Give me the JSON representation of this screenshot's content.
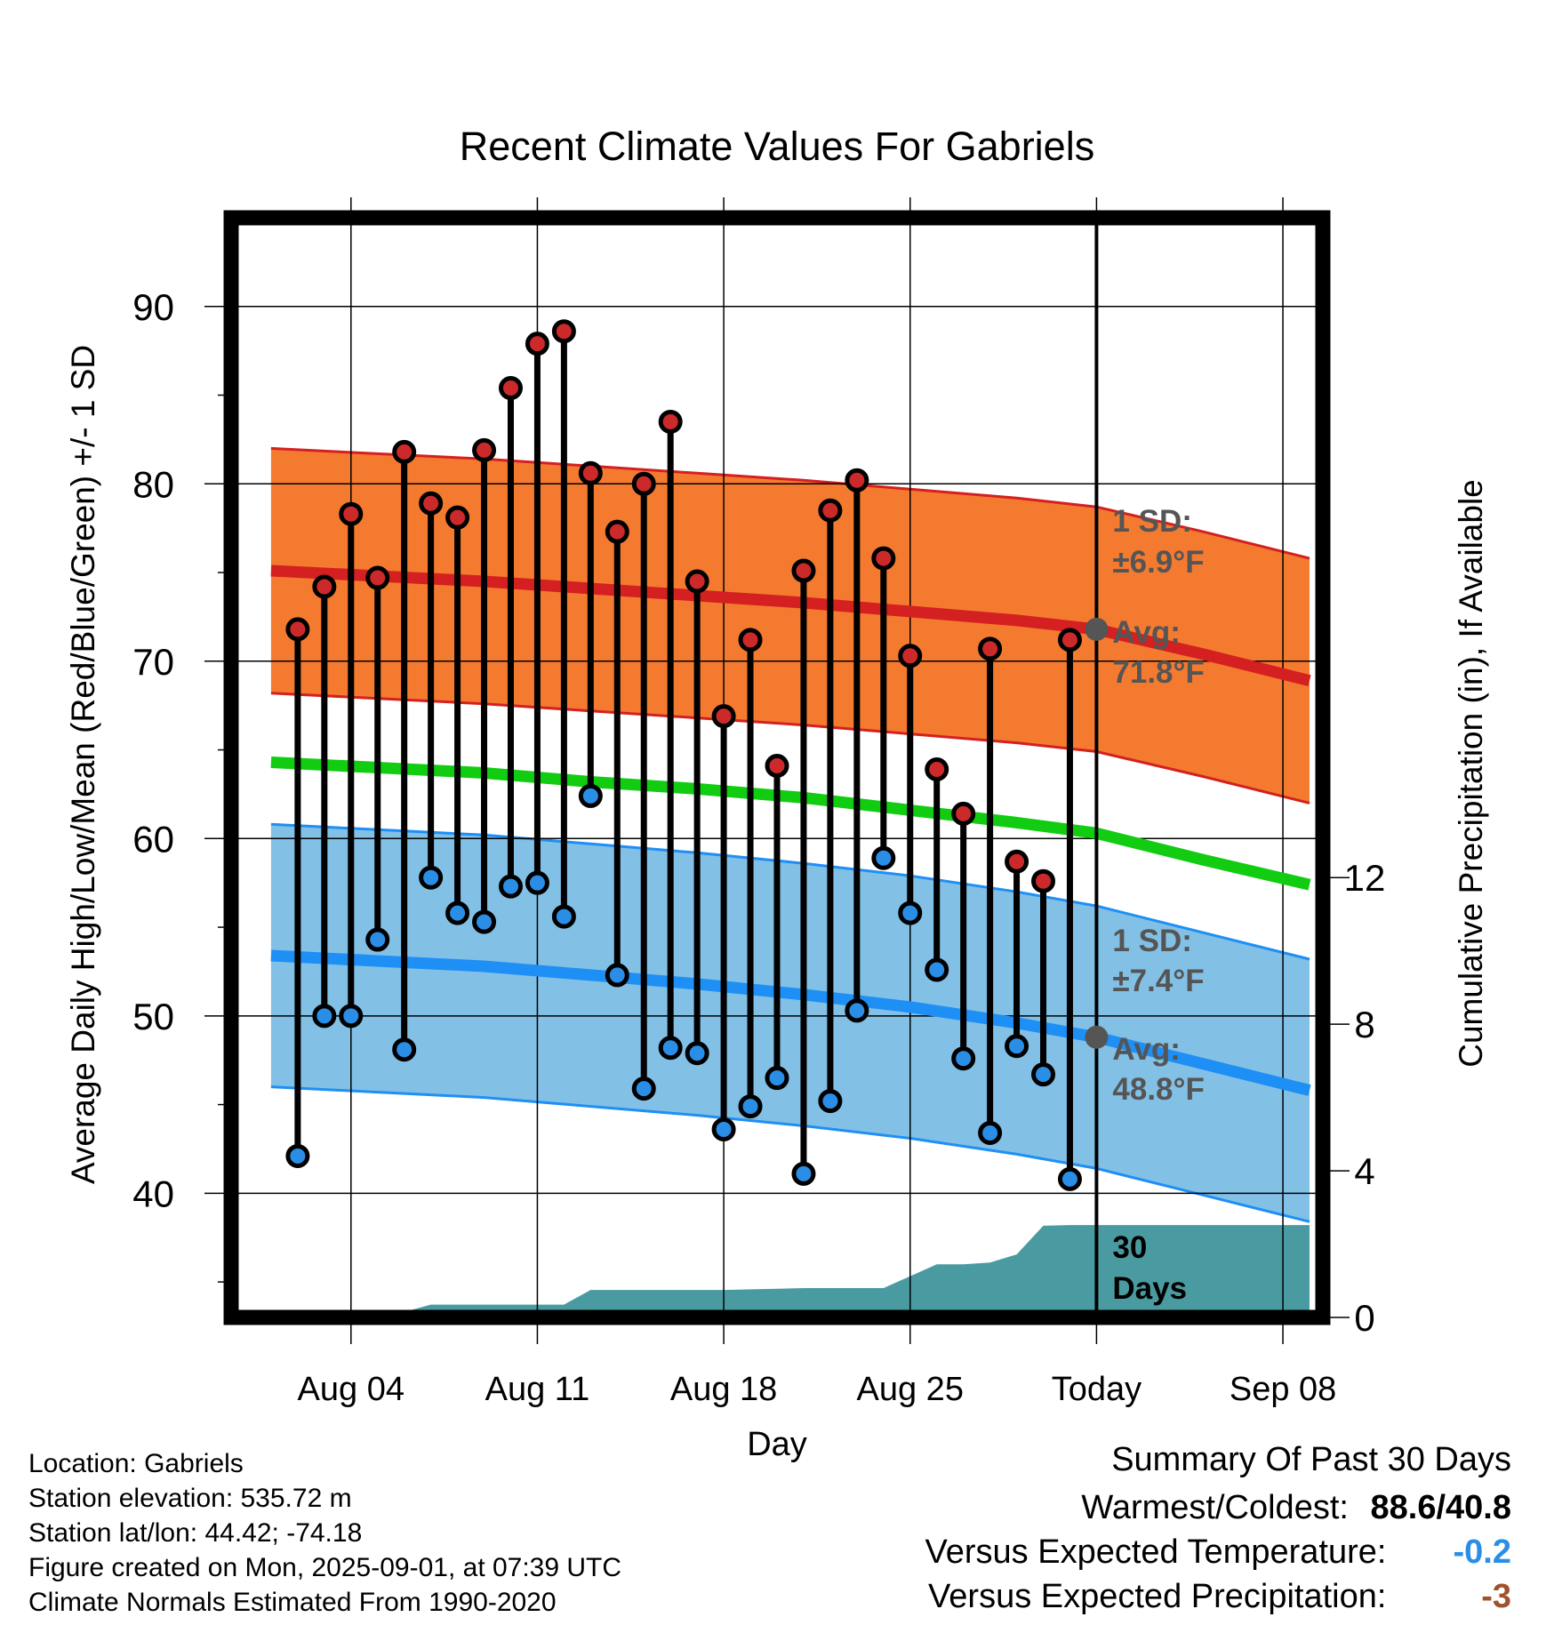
{
  "chart_data": {
    "type": "line",
    "title": "Recent Climate Values For Gabriels",
    "xlabel": "Day",
    "ylabel": "Average Daily High/Low/Mean (Red/Blue/Green) +/- 1 SD",
    "y2label": "Cumulative Precipitation (in), If Available",
    "ylim": [
      33,
      95
    ],
    "y2lim": [
      0,
      30
    ],
    "xlim": [
      -1.5,
      39.5
    ],
    "yticks": [
      40,
      50,
      60,
      70,
      80,
      90
    ],
    "y2ticks": [
      0,
      4,
      8,
      12
    ],
    "xtick_positions": [
      3,
      10,
      17,
      24,
      31,
      38
    ],
    "xtick_labels": [
      "Aug 04",
      "Aug 11",
      "Aug 18",
      "Aug 25",
      "Today",
      "Sep 08"
    ],
    "grid": true,
    "today_index": 31,
    "days": [
      1,
      2,
      3,
      4,
      5,
      6,
      7,
      8,
      9,
      10,
      11,
      12,
      13,
      14,
      15,
      16,
      17,
      18,
      19,
      20,
      21,
      22,
      23,
      24,
      25,
      26,
      27,
      28,
      29,
      30
    ],
    "highs": [
      71.8,
      74.2,
      78.3,
      74.7,
      81.8,
      78.9,
      78.1,
      81.9,
      85.4,
      87.9,
      88.6,
      80.6,
      77.3,
      80.0,
      83.5,
      74.5,
      66.9,
      71.2,
      64.1,
      75.1,
      78.5,
      80.2,
      75.8,
      70.3,
      63.9,
      61.4,
      70.7,
      58.7,
      57.6,
      71.2
    ],
    "lows": [
      42.1,
      50.0,
      50.0,
      54.3,
      48.1,
      57.8,
      55.8,
      55.3,
      57.3,
      57.5,
      55.6,
      62.4,
      52.3,
      45.9,
      48.2,
      47.9,
      43.6,
      44.9,
      46.5,
      41.1,
      45.2,
      50.3,
      58.9,
      55.8,
      52.6,
      47.6,
      43.4,
      48.3,
      46.7,
      40.8
    ],
    "normal_x": [
      0,
      4,
      8,
      12,
      16,
      20,
      24,
      28,
      31,
      35,
      39
    ],
    "normal_high": [
      75.1,
      74.8,
      74.5,
      74.1,
      73.7,
      73.3,
      72.8,
      72.3,
      71.8,
      70.4,
      68.9
    ],
    "normal_high_sd": 6.9,
    "normal_low": [
      53.4,
      53.1,
      52.8,
      52.3,
      51.8,
      51.2,
      50.5,
      49.6,
      48.8,
      47.3,
      45.8
    ],
    "normal_low_sd": 7.4,
    "normal_mean": [
      64.3,
      64.0,
      63.7,
      63.2,
      62.8,
      62.3,
      61.6,
      60.9,
      60.3,
      58.8,
      57.4
    ],
    "precip_x": [
      0,
      4,
      5,
      6,
      10,
      11,
      12,
      16,
      17,
      20,
      21,
      22,
      23,
      25,
      26,
      27,
      28,
      29,
      30,
      31,
      39
    ],
    "precip": [
      0,
      0,
      0.15,
      0.35,
      0.35,
      0.35,
      0.75,
      0.75,
      0.75,
      0.8,
      0.8,
      0.8,
      0.8,
      1.45,
      1.45,
      1.5,
      1.72,
      2.5,
      2.52,
      2.52,
      2.52
    ],
    "annotations": {
      "high_sd_line1": "1 SD:",
      "high_sd_line2": "±6.9°F",
      "high_avg_line1": "Avg:",
      "high_avg_line2": "71.8°F",
      "low_sd_line1": "1 SD:",
      "low_sd_line2": "±7.4°F",
      "low_avg_line1": "Avg:",
      "low_avg_line2": "48.8°F",
      "days_line1": "30",
      "days_line2": "Days"
    },
    "colors": {
      "high_band": "#f47a30",
      "high_line": "#d42020",
      "low_band": "#82c0e6",
      "low_line": "#1e8ff5",
      "mean_line": "#11cc11",
      "precip": "#4a9ba1",
      "high_marker": "#cc2a2a",
      "low_marker": "#2b8ee6",
      "annotation": "#555555"
    }
  },
  "meta": {
    "location": "Location: Gabriels",
    "elevation": "Station elevation: 535.72 m",
    "latlon": "Station lat/lon: 44.42; -74.18",
    "created": "Figure created on Mon, 2025-09-01, at 07:39 UTC",
    "normals": "Climate Normals Estimated From 1990-2020"
  },
  "summary": {
    "title": "Summary Of Past 30 Days",
    "warmest_label": "Warmest/Coldest:",
    "warmest_value": "88.6/40.8",
    "temp_label": "Versus Expected Temperature:",
    "temp_value": "-0.2",
    "temp_color": "#2b8ee6",
    "precip_label": "Versus Expected Precipitation:",
    "precip_value": "-3",
    "precip_color": "#a0522d"
  }
}
